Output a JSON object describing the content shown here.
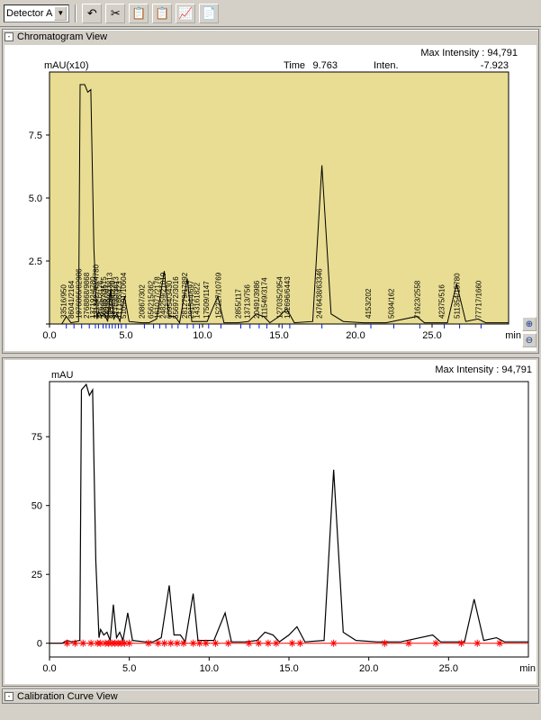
{
  "toolbar": {
    "detector_label": "Detector A",
    "icon_glyphs": [
      "↶",
      "✂",
      "📋",
      "📋",
      "📈",
      "📄"
    ]
  },
  "panel1": {
    "title": "Chromatogram View",
    "header": {
      "max_intensity_label": "Max Intensity :",
      "max_intensity_value": "94,791",
      "time_label": "Time",
      "time_value": "9.763",
      "inten_label": "Inten.",
      "inten_value": "-7.923"
    },
    "yaxis_label": "mAU(x10)",
    "xaxis_label": "min",
    "plot_bg": "#e8dd93",
    "line_color": "#000000",
    "tick_color_blue": "#0020d0",
    "grid_color": "#808080",
    "yticks": [
      {
        "v": 0,
        "l": ""
      },
      {
        "v": 2.5,
        "l": "2.5"
      },
      {
        "v": 5.0,
        "l": "5.0"
      },
      {
        "v": 7.5,
        "l": "7.5"
      }
    ],
    "ylim": [
      0,
      10
    ],
    "xticks": [
      {
        "v": 0,
        "l": "0.0"
      },
      {
        "v": 5,
        "l": "5.0"
      },
      {
        "v": 10,
        "l": "10.0"
      },
      {
        "v": 15,
        "l": "15.0"
      },
      {
        "v": 20,
        "l": "20.0"
      },
      {
        "v": 25,
        "l": "25.0"
      }
    ],
    "xlim": [
      0,
      30
    ],
    "peak_labels": [
      {
        "x": 1.1,
        "t": "33516/950"
      },
      {
        "x": 1.6,
        "t": "86041/2164"
      },
      {
        "x": 2.1,
        "t": "1976866/82986"
      },
      {
        "x": 2.6,
        "t": "2768868/9868"
      },
      {
        "x": 3.0,
        "t": "137192/4780"
      },
      {
        "x": 3.2,
        "t": "221342749/4780"
      },
      {
        "x": 3.5,
        "t": "41625/3176"
      },
      {
        "x": 3.7,
        "t": "268957/3515"
      },
      {
        "x": 3.9,
        "t": "24098/207"
      },
      {
        "x": 4.1,
        "t": "294798/13813"
      },
      {
        "x": 4.3,
        "t": "387034/220"
      },
      {
        "x": 4.5,
        "t": "217030/3613"
      },
      {
        "x": 4.7,
        "t": "117166/423"
      },
      {
        "x": 5.0,
        "t": "510591/10604"
      },
      {
        "x": 6.2,
        "t": "20867/302"
      },
      {
        "x": 6.8,
        "t": "656215/362"
      },
      {
        "x": 7.2,
        "t": "161077/2178"
      },
      {
        "x": 7.6,
        "t": "248259/21019"
      },
      {
        "x": 8.0,
        "t": "60954/3430"
      },
      {
        "x": 8.4,
        "t": "556972/3016"
      },
      {
        "x": 9.0,
        "t": "281279/17892"
      },
      {
        "x": 9.4,
        "t": "291544/697"
      },
      {
        "x": 9.8,
        "t": "143161822"
      },
      {
        "x": 10.4,
        "t": "17509/1147"
      },
      {
        "x": 11.2,
        "t": "152227/10769"
      },
      {
        "x": 12.5,
        "t": "2855/117"
      },
      {
        "x": 13.1,
        "t": "13713/756"
      },
      {
        "x": 13.7,
        "t": "20491/3986"
      },
      {
        "x": 14.2,
        "t": "111549/3174"
      },
      {
        "x": 15.2,
        "t": "127035/2954"
      },
      {
        "x": 15.7,
        "t": "142696/6443"
      },
      {
        "x": 17.8,
        "t": "2476438/63346"
      },
      {
        "x": 21.0,
        "t": "4153/202"
      },
      {
        "x": 22.5,
        "t": "5034/162"
      },
      {
        "x": 24.2,
        "t": "71623/2558"
      },
      {
        "x": 25.8,
        "t": "42375/516"
      },
      {
        "x": 26.8,
        "t": "511354/15780"
      },
      {
        "x": 28.2,
        "t": "77717/1660"
      }
    ],
    "trace": [
      {
        "x": 0,
        "y": 0
      },
      {
        "x": 0.8,
        "y": 0
      },
      {
        "x": 1.1,
        "y": 0.3
      },
      {
        "x": 1.4,
        "y": 0.05
      },
      {
        "x": 1.9,
        "y": 0.1
      },
      {
        "x": 2.0,
        "y": 9.5
      },
      {
        "x": 2.3,
        "y": 9.5
      },
      {
        "x": 2.5,
        "y": 9.2
      },
      {
        "x": 2.7,
        "y": 9.3
      },
      {
        "x": 2.9,
        "y": 3.0
      },
      {
        "x": 3.1,
        "y": 0.2
      },
      {
        "x": 3.2,
        "y": 0.5
      },
      {
        "x": 3.4,
        "y": 0.3
      },
      {
        "x": 3.6,
        "y": 0.4
      },
      {
        "x": 3.8,
        "y": 0.1
      },
      {
        "x": 4.0,
        "y": 1.4
      },
      {
        "x": 4.2,
        "y": 0.2
      },
      {
        "x": 4.4,
        "y": 0.4
      },
      {
        "x": 4.6,
        "y": 0.1
      },
      {
        "x": 4.9,
        "y": 1.1
      },
      {
        "x": 5.2,
        "y": 0.1
      },
      {
        "x": 6.0,
        "y": 0.05
      },
      {
        "x": 6.5,
        "y": 0.05
      },
      {
        "x": 7.0,
        "y": 0.2
      },
      {
        "x": 7.5,
        "y": 2.1
      },
      {
        "x": 7.8,
        "y": 0.3
      },
      {
        "x": 8.2,
        "y": 0.3
      },
      {
        "x": 8.5,
        "y": 0.05
      },
      {
        "x": 9.0,
        "y": 1.8
      },
      {
        "x": 9.3,
        "y": 0.1
      },
      {
        "x": 9.7,
        "y": 0.1
      },
      {
        "x": 10.3,
        "y": 0.1
      },
      {
        "x": 11.0,
        "y": 1.1
      },
      {
        "x": 11.4,
        "y": 0.05
      },
      {
        "x": 12.3,
        "y": 0.05
      },
      {
        "x": 13.0,
        "y": 0.1
      },
      {
        "x": 13.5,
        "y": 0.4
      },
      {
        "x": 14.0,
        "y": 0.3
      },
      {
        "x": 14.4,
        "y": 0.05
      },
      {
        "x": 15.0,
        "y": 0.3
      },
      {
        "x": 15.5,
        "y": 0.6
      },
      {
        "x": 16.0,
        "y": 0.05
      },
      {
        "x": 17.2,
        "y": 0.1
      },
      {
        "x": 17.8,
        "y": 6.3
      },
      {
        "x": 18.4,
        "y": 0.4
      },
      {
        "x": 19.2,
        "y": 0.1
      },
      {
        "x": 20.5,
        "y": 0.05
      },
      {
        "x": 22.0,
        "y": 0.05
      },
      {
        "x": 24.0,
        "y": 0.3
      },
      {
        "x": 24.5,
        "y": 0.05
      },
      {
        "x": 26.0,
        "y": 0.05
      },
      {
        "x": 26.6,
        "y": 1.6
      },
      {
        "x": 27.2,
        "y": 0.1
      },
      {
        "x": 28.0,
        "y": 0.2
      },
      {
        "x": 28.5,
        "y": 0.05
      },
      {
        "x": 30,
        "y": 0.05
      }
    ]
  },
  "panel2": {
    "header": {
      "max_intensity_label": "Max Intensity :",
      "max_intensity_value": "94,791"
    },
    "yaxis_label": "mAU",
    "xaxis_label": "min",
    "plot_bg": "#ffffff",
    "line_color": "#000000",
    "marker_color": "#ff0000",
    "baseline_color": "#ff0000",
    "yticks": [
      {
        "v": 0,
        "l": "0"
      },
      {
        "v": 25,
        "l": "25"
      },
      {
        "v": 50,
        "l": "50"
      },
      {
        "v": 75,
        "l": "75"
      }
    ],
    "ylim": [
      -5,
      95
    ],
    "xticks": [
      {
        "v": 0,
        "l": "0.0"
      },
      {
        "v": 5,
        "l": "5.0"
      },
      {
        "v": 10,
        "l": "10.0"
      },
      {
        "v": 15,
        "l": "15.0"
      },
      {
        "v": 20,
        "l": "20.0"
      },
      {
        "v": 25,
        "l": "25.0"
      }
    ],
    "xlim": [
      0,
      30
    ],
    "markers_x": [
      1.1,
      1.6,
      2.1,
      2.6,
      3.0,
      3.2,
      3.5,
      3.7,
      3.9,
      4.1,
      4.3,
      4.5,
      4.7,
      5.0,
      6.2,
      6.8,
      7.2,
      7.6,
      8.0,
      8.4,
      9.0,
      9.4,
      9.8,
      10.4,
      11.2,
      12.5,
      13.1,
      13.7,
      14.2,
      15.2,
      15.7,
      17.8,
      21.0,
      22.5,
      24.2,
      25.8,
      26.8,
      28.2
    ],
    "trace": [
      {
        "x": 0,
        "y": 0
      },
      {
        "x": 0.8,
        "y": 0
      },
      {
        "x": 1.1,
        "y": 1
      },
      {
        "x": 1.4,
        "y": 0.5
      },
      {
        "x": 1.9,
        "y": 1
      },
      {
        "x": 2.0,
        "y": 92
      },
      {
        "x": 2.3,
        "y": 94
      },
      {
        "x": 2.5,
        "y": 90
      },
      {
        "x": 2.7,
        "y": 92
      },
      {
        "x": 2.9,
        "y": 30
      },
      {
        "x": 3.1,
        "y": 2
      },
      {
        "x": 3.2,
        "y": 5
      },
      {
        "x": 3.4,
        "y": 3
      },
      {
        "x": 3.6,
        "y": 4
      },
      {
        "x": 3.8,
        "y": 1
      },
      {
        "x": 4.0,
        "y": 14
      },
      {
        "x": 4.2,
        "y": 2
      },
      {
        "x": 4.4,
        "y": 4
      },
      {
        "x": 4.6,
        "y": 1
      },
      {
        "x": 4.9,
        "y": 11
      },
      {
        "x": 5.2,
        "y": 1
      },
      {
        "x": 6.0,
        "y": 0.5
      },
      {
        "x": 6.5,
        "y": 0.5
      },
      {
        "x": 7.0,
        "y": 2
      },
      {
        "x": 7.5,
        "y": 21
      },
      {
        "x": 7.8,
        "y": 3
      },
      {
        "x": 8.2,
        "y": 3
      },
      {
        "x": 8.5,
        "y": 0.5
      },
      {
        "x": 9.0,
        "y": 18
      },
      {
        "x": 9.3,
        "y": 1
      },
      {
        "x": 9.7,
        "y": 1
      },
      {
        "x": 10.3,
        "y": 1
      },
      {
        "x": 11.0,
        "y": 11
      },
      {
        "x": 11.4,
        "y": 0.5
      },
      {
        "x": 12.3,
        "y": 0.5
      },
      {
        "x": 13.0,
        "y": 1
      },
      {
        "x": 13.5,
        "y": 4
      },
      {
        "x": 14.0,
        "y": 3
      },
      {
        "x": 14.4,
        "y": 0.5
      },
      {
        "x": 15.0,
        "y": 3
      },
      {
        "x": 15.5,
        "y": 6
      },
      {
        "x": 16.0,
        "y": 0.5
      },
      {
        "x": 17.2,
        "y": 1
      },
      {
        "x": 17.8,
        "y": 63
      },
      {
        "x": 18.4,
        "y": 4
      },
      {
        "x": 19.2,
        "y": 1
      },
      {
        "x": 20.5,
        "y": 0.5
      },
      {
        "x": 22.0,
        "y": 0.5
      },
      {
        "x": 24.0,
        "y": 3
      },
      {
        "x": 24.5,
        "y": 0.5
      },
      {
        "x": 26.0,
        "y": 0.5
      },
      {
        "x": 26.6,
        "y": 16
      },
      {
        "x": 27.2,
        "y": 1
      },
      {
        "x": 28.0,
        "y": 2
      },
      {
        "x": 28.5,
        "y": 0.5
      },
      {
        "x": 30,
        "y": 0.5
      }
    ]
  },
  "panel3": {
    "title": "Calibration Curve View"
  }
}
